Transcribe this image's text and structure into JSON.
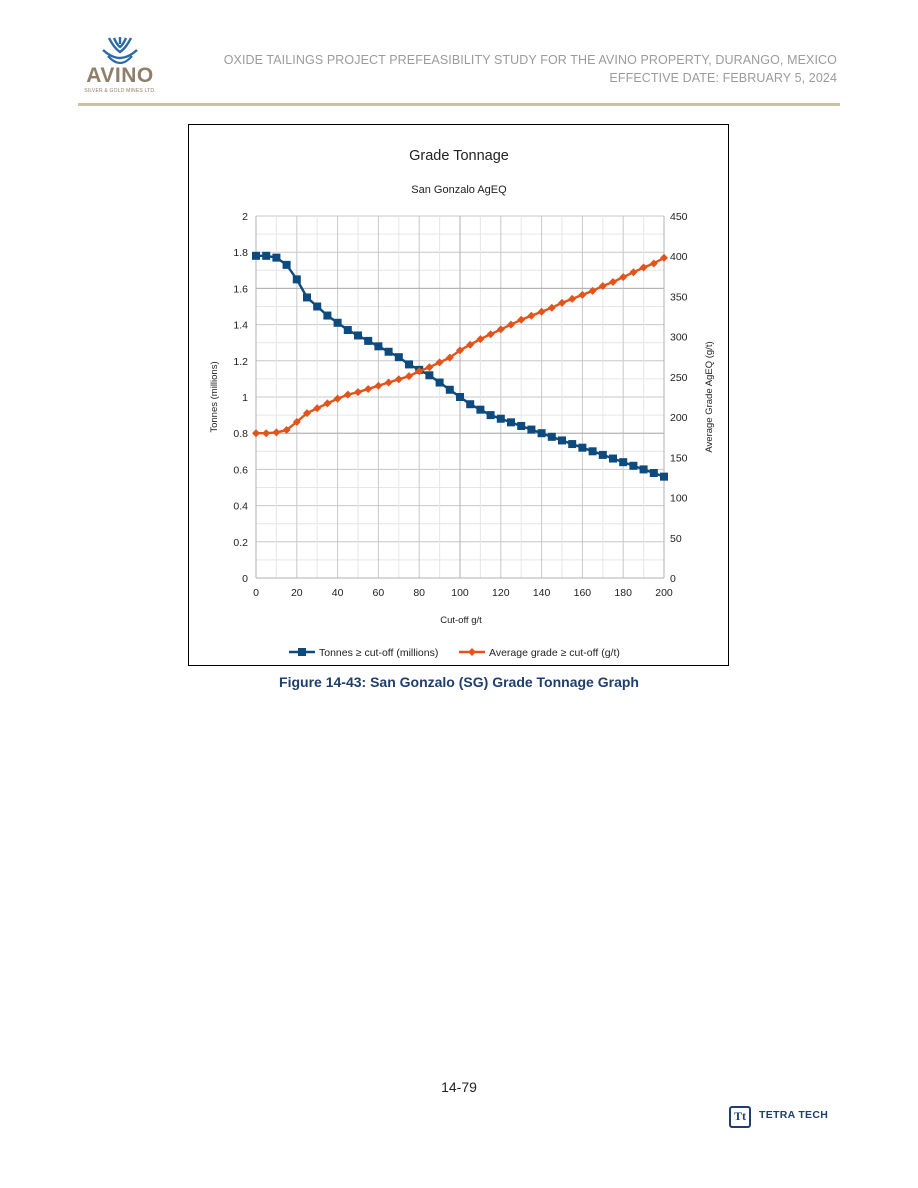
{
  "header": {
    "logo_word": "AVINO",
    "logo_sub": "SILVER & GOLD MINES LTD.",
    "line1": "OXIDE TAILINGS PROJECT PREFEASIBILITY STUDY FOR THE AVINO PROPERTY, DURANGO, MEXICO",
    "line2": "EFFECTIVE DATE: FEBRUARY 5, 2024",
    "rule_color": "#c9c2a6"
  },
  "chart_data": {
    "type": "line",
    "title": "Grade Tonnage",
    "subtitle": "San Gonzalo AgEQ",
    "xlabel": "Cut-off g/t",
    "ylabel_left": "Tonnes (millions)",
    "ylabel_right": "Average Grade AgEQ (g/t)",
    "xlim": [
      0,
      200
    ],
    "ylim_left": [
      0,
      2
    ],
    "ylim_right": [
      0,
      450
    ],
    "x_ticks": [
      "0",
      "20",
      "40",
      "60",
      "80",
      "100",
      "120",
      "140",
      "160",
      "180",
      "200"
    ],
    "y_left_ticks": [
      "0",
      "0.2",
      "0.4",
      "0.6",
      "0.8",
      "1",
      "1.2",
      "1.4",
      "1.6",
      "1.8",
      "2"
    ],
    "y_right_ticks": [
      "0",
      "50",
      "100",
      "150",
      "200",
      "250",
      "300",
      "350",
      "400",
      "450"
    ],
    "grid": true,
    "legend_position": "bottom",
    "x": [
      0,
      5,
      10,
      15,
      20,
      25,
      30,
      35,
      40,
      45,
      50,
      55,
      60,
      65,
      70,
      75,
      80,
      85,
      90,
      95,
      100,
      105,
      110,
      115,
      120,
      125,
      130,
      135,
      140,
      145,
      150,
      155,
      160,
      165,
      170,
      175,
      180,
      185,
      190,
      195,
      200
    ],
    "series": [
      {
        "name": "Tonnes ≥ cut-off (millions)",
        "axis": "left",
        "color": "#0d4a7e",
        "marker": "square",
        "values": [
          1.78,
          1.78,
          1.77,
          1.73,
          1.65,
          1.55,
          1.5,
          1.45,
          1.41,
          1.37,
          1.34,
          1.31,
          1.28,
          1.25,
          1.22,
          1.18,
          1.15,
          1.12,
          1.08,
          1.04,
          1.0,
          0.96,
          0.93,
          0.9,
          0.88,
          0.86,
          0.84,
          0.82,
          0.8,
          0.78,
          0.76,
          0.74,
          0.72,
          0.7,
          0.68,
          0.66,
          0.64,
          0.62,
          0.6,
          0.58,
          0.56
        ]
      },
      {
        "name": "Average grade ≥ cut-off (g/t)",
        "axis": "right",
        "color": "#e3541b",
        "marker": "diamond",
        "values": [
          180,
          180,
          181,
          184,
          194,
          205,
          211,
          217,
          223,
          228,
          231,
          235,
          239,
          243,
          247,
          251,
          257,
          262,
          268,
          274,
          283,
          290,
          297,
          303,
          309,
          315,
          321,
          326,
          331,
          336,
          342,
          347,
          352,
          357,
          363,
          368,
          374,
          380,
          386,
          391,
          398
        ]
      }
    ]
  },
  "caption": "Figure 14-43: San Gonzalo (SG) Grade Tonnage Graph",
  "page_number": "14-79",
  "footer": {
    "brand": "TETRA TECH",
    "brand_mark": "Tt"
  }
}
